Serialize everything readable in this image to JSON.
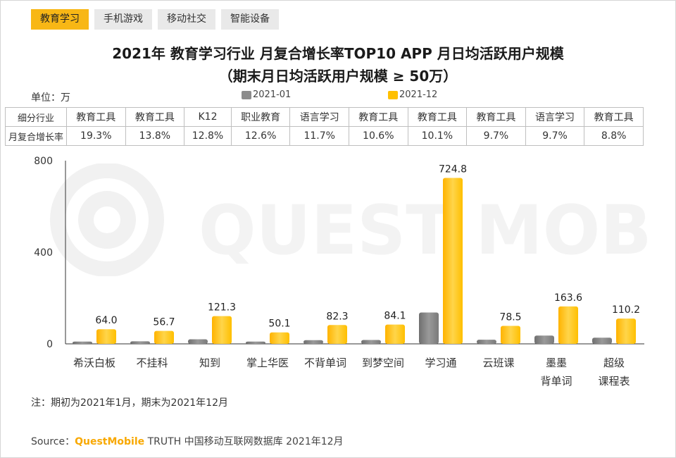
{
  "tabs": [
    {
      "label": "教育学习",
      "active": true
    },
    {
      "label": "手机游戏",
      "active": false
    },
    {
      "label": "移动社交",
      "active": false
    },
    {
      "label": "智能设备",
      "active": false
    }
  ],
  "title_line1": "2021年 教育学习行业 月复合增长率TOP10 APP 月日均活跃用户规模",
  "title_line2": "（期末月日均活跃用户规模 ≥ 50万）",
  "unit_label": "单位：万",
  "table": {
    "row1_header": "细分行业",
    "row2_header": "月复合增长率",
    "industries": [
      "教育工具",
      "教育工具",
      "K12",
      "职业教育",
      "语言学习",
      "教育工具",
      "教育工具",
      "教育工具",
      "语言学习",
      "教育工具"
    ],
    "growth_rates": [
      "19.3%",
      "13.8%",
      "12.8%",
      "12.6%",
      "11.7%",
      "10.6%",
      "10.1%",
      "9.7%",
      "9.7%",
      "8.8%"
    ]
  },
  "watermark_text": "QUEST MOBILE",
  "note": "注：期初为2021年1月，期末为2021年12月",
  "source": {
    "prefix": "Source：",
    "brand": "QuestMobile",
    "rest": " TRUTH 中国移动互联网数据库 2021年12月"
  },
  "colors": {
    "accent": "#f8b715",
    "series_2021_01": "#8c8c8c",
    "series_2021_12": "#ffc000"
  },
  "chart_data": {
    "type": "bar",
    "categories": [
      "希沃白板",
      "不挂科",
      "知到",
      "掌上华医",
      "不背单词",
      "到梦空间",
      "学习通",
      "云班课",
      "墨墨\n背单词",
      "超级\n课程表"
    ],
    "series": [
      {
        "name": "2021-01",
        "values": [
          10,
          11,
          20,
          10,
          16,
          17,
          137,
          18,
          36,
          27
        ],
        "labels": [
          "",
          "",
          "",
          "",
          "",
          "",
          "",
          "",
          "",
          ""
        ]
      },
      {
        "name": "2021-12",
        "values": [
          64.0,
          56.7,
          121.3,
          50.1,
          82.3,
          84.1,
          724.8,
          78.5,
          163.6,
          110.2
        ],
        "labels": [
          "64.0",
          "56.7",
          "121.3",
          "50.1",
          "82.3",
          "84.1",
          "724.8",
          "78.5",
          "163.6",
          "110.2"
        ]
      }
    ],
    "yticks": [
      "0",
      "400",
      "800"
    ],
    "ylim": [
      0,
      800
    ],
    "legend": "top",
    "grid": false
  }
}
